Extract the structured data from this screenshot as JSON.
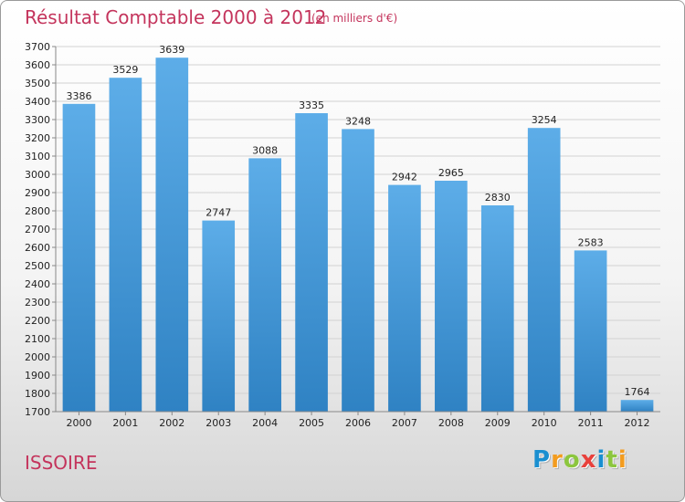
{
  "title": "Résultat Comptable 2000 à 2012",
  "subtitle": "(en milliers d'€)",
  "place": "ISSOIRE",
  "logo": {
    "text": "Proxiti",
    "letters": [
      {
        "ch": "P",
        "color": "#1a8fd0"
      },
      {
        "ch": "r",
        "color": "#f39c1f"
      },
      {
        "ch": "o",
        "color": "#8cc63e"
      },
      {
        "ch": "x",
        "color": "#e8413c"
      },
      {
        "ch": "i",
        "color": "#1a8fd0"
      },
      {
        "ch": "t",
        "color": "#8cc63e"
      },
      {
        "ch": "i",
        "color": "#f39c1f"
      }
    ]
  },
  "colors": {
    "title": "#c4345c",
    "bar_top": "#5dade8",
    "bar_bottom": "#2f82c3",
    "grid": "#d2d2d2",
    "text": "#222222"
  },
  "chart_data": {
    "type": "bar",
    "categories": [
      "2000",
      "2001",
      "2002",
      "2003",
      "2004",
      "2005",
      "2006",
      "2007",
      "2008",
      "2009",
      "2010",
      "2011",
      "2012"
    ],
    "values": [
      3386,
      3529,
      3639,
      2747,
      3088,
      3335,
      3248,
      2942,
      2965,
      2830,
      3254,
      2583,
      1764
    ],
    "data_labels": [
      "3386",
      "3529",
      "3639",
      "2747",
      "3088",
      "3335",
      "3248",
      "2942",
      "2965",
      "2830",
      "3254",
      "2583",
      "1764"
    ],
    "ylim": [
      1700,
      3700
    ],
    "ytick_step": 100,
    "yticks": [
      "1700",
      "1800",
      "1900",
      "2000",
      "2100",
      "2200",
      "2300",
      "2400",
      "2500",
      "2600",
      "2700",
      "2800",
      "2900",
      "3000",
      "3100",
      "3200",
      "3300",
      "3400",
      "3500",
      "3600",
      "3700"
    ],
    "grid": true,
    "legend": "none",
    "xlabel": "",
    "ylabel": ""
  }
}
